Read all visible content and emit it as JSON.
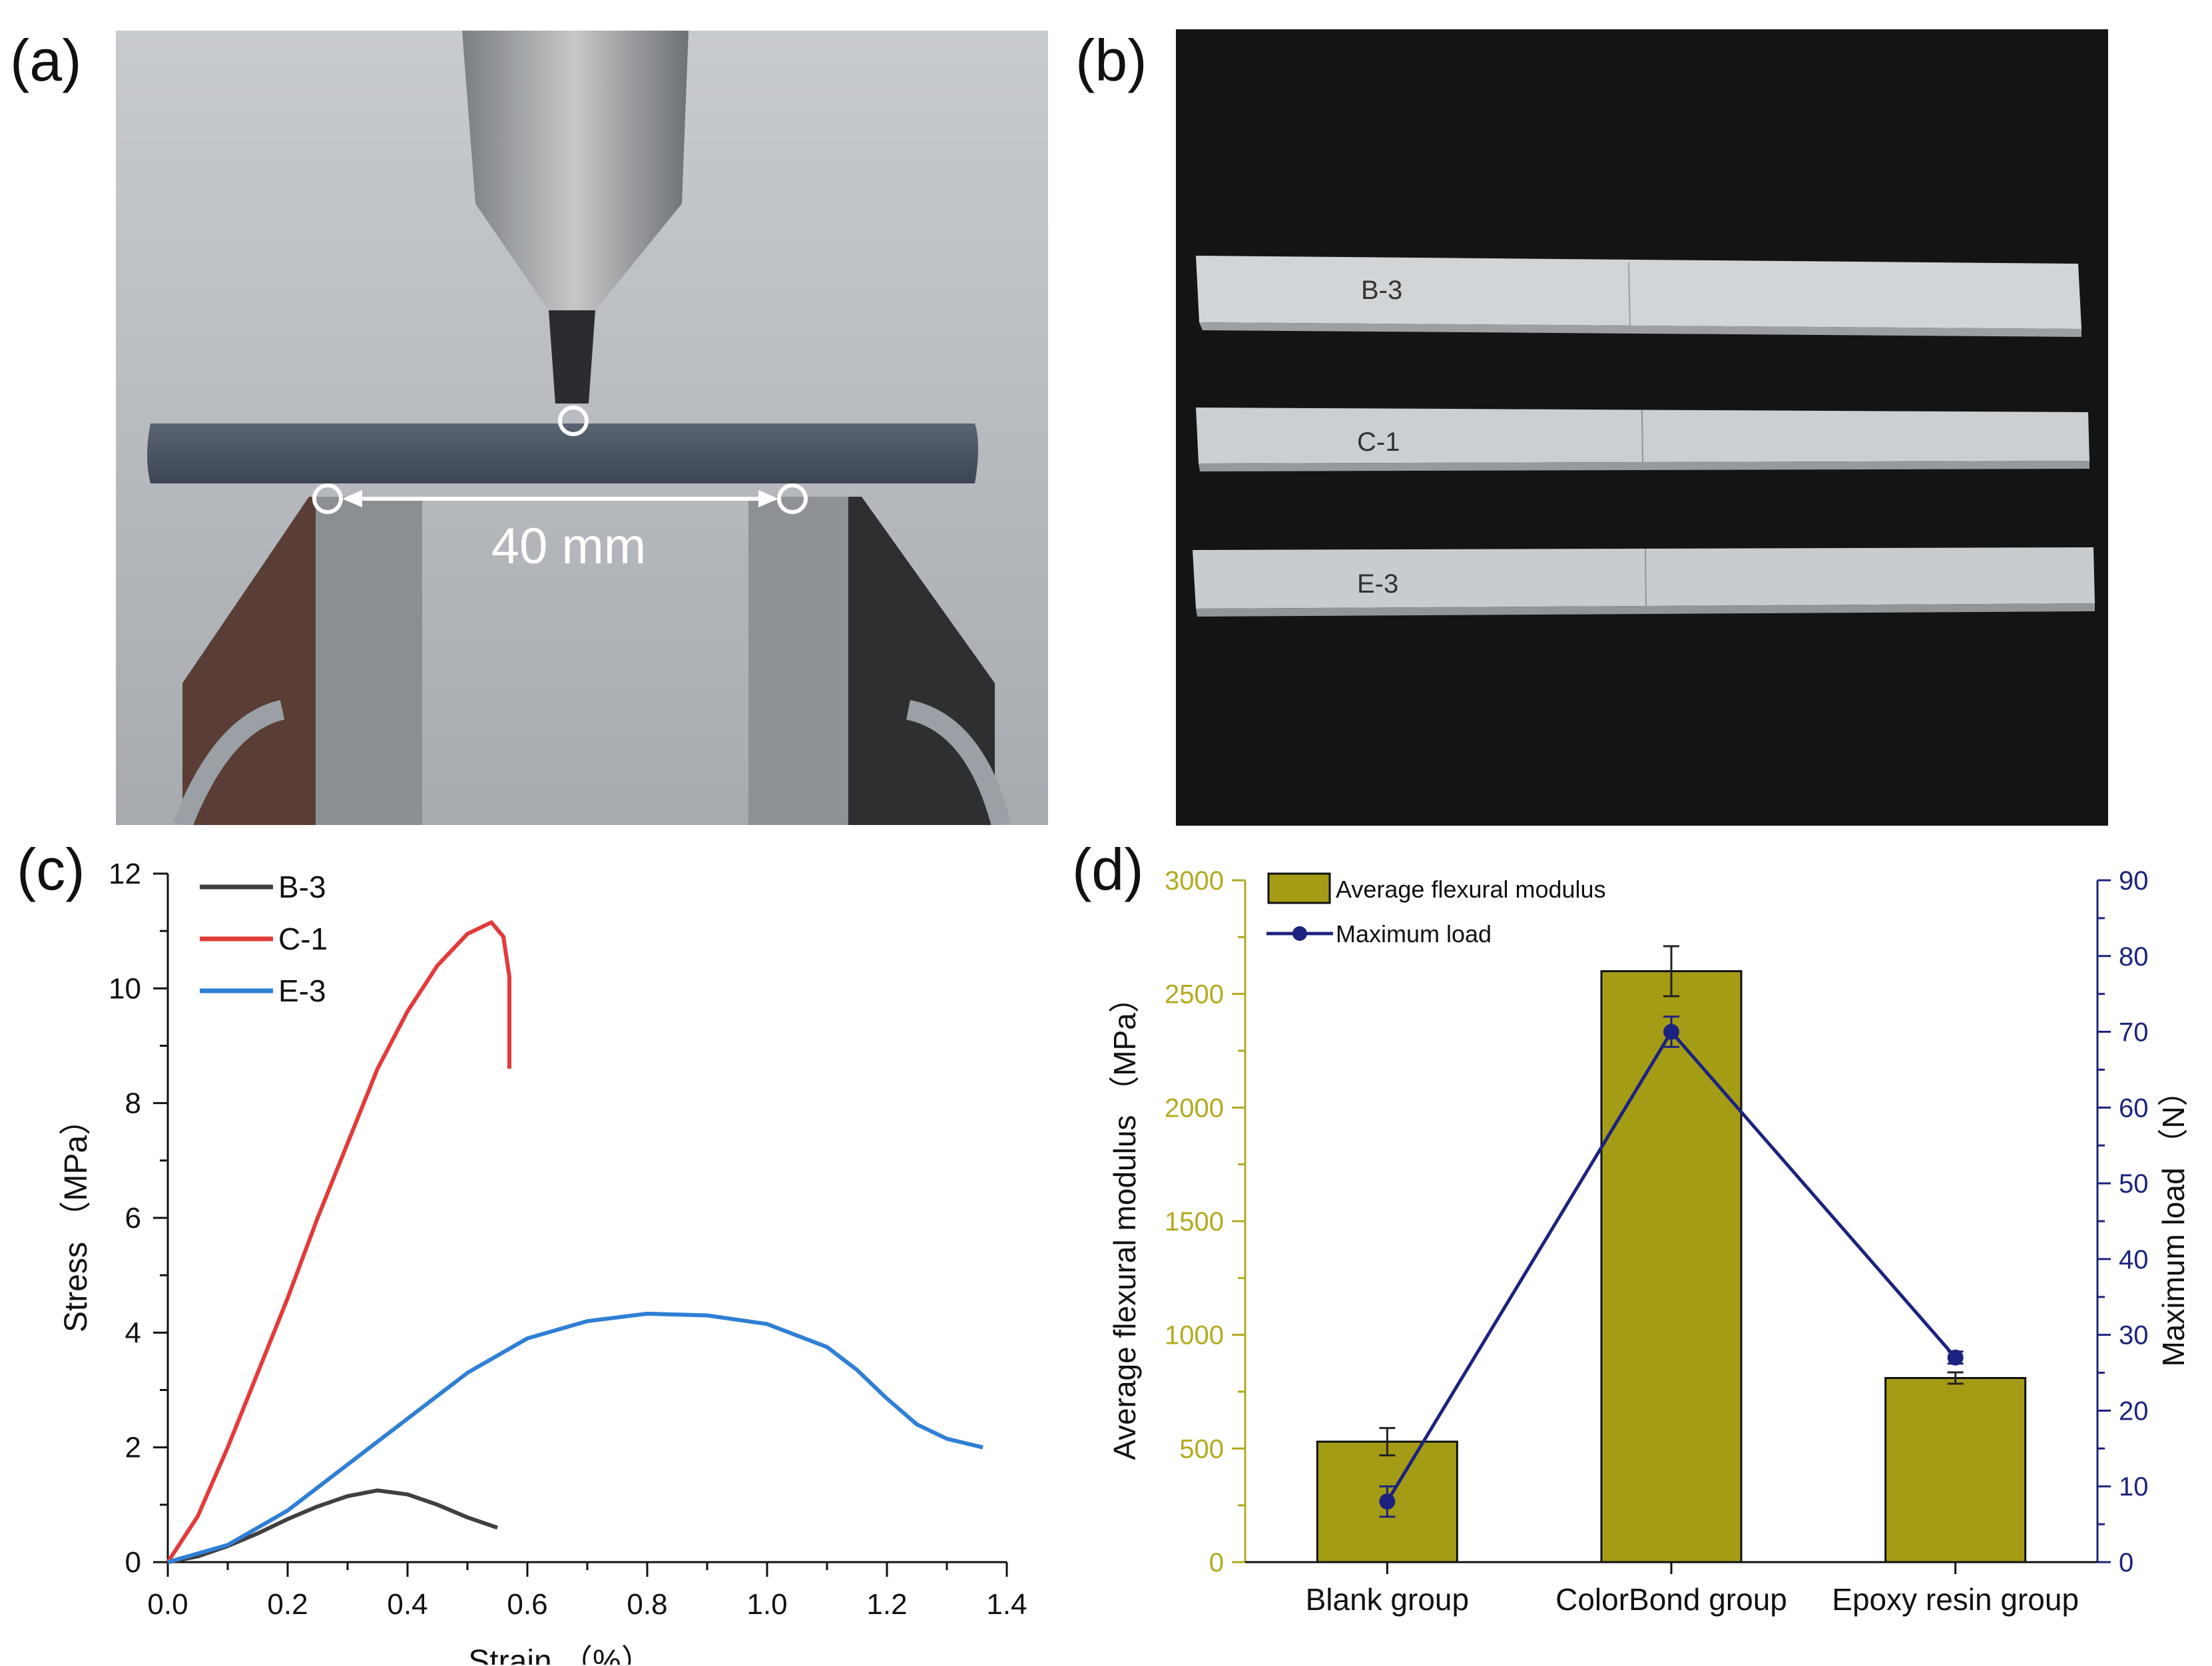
{
  "panels": {
    "a": {
      "label": "(a)",
      "span_label": "40 mm"
    },
    "b": {
      "label": "(b)",
      "specimens": [
        "B-3",
        "C-1",
        "E-3"
      ]
    },
    "c": {
      "label": "(c)"
    },
    "d": {
      "label": "(d)"
    }
  },
  "colors": {
    "b3": "#404040",
    "c1": "#e23b3b",
    "e3": "#2f7fd6",
    "bar": "#a59c16",
    "load": "#1c237e",
    "left_axis": "#b3aa1f",
    "right_axis": "#1c237e"
  },
  "chart_data": [
    {
      "type": "line",
      "xlabel": "Strain （%）",
      "ylabel": "Stress （MPa）",
      "xlim": [
        0,
        1.4
      ],
      "ylim": [
        0,
        12
      ],
      "xticks": [
        "0.0",
        "0.2",
        "0.4",
        "0.6",
        "0.8",
        "1.0",
        "1.2",
        "1.4"
      ],
      "yticks": [
        "0",
        "2",
        "4",
        "6",
        "8",
        "10",
        "12"
      ],
      "legend": "top-left",
      "series": [
        {
          "name": "B-3",
          "color": "#404040",
          "x": [
            0,
            0.05,
            0.1,
            0.15,
            0.2,
            0.25,
            0.3,
            0.35,
            0.4,
            0.45,
            0.5,
            0.55
          ],
          "y": [
            0,
            0.1,
            0.28,
            0.5,
            0.75,
            0.97,
            1.15,
            1.25,
            1.18,
            1.0,
            0.78,
            0.6
          ]
        },
        {
          "name": "C-1",
          "color": "#e23b3b",
          "x": [
            0,
            0.05,
            0.1,
            0.15,
            0.2,
            0.25,
            0.3,
            0.35,
            0.4,
            0.45,
            0.5,
            0.54,
            0.56,
            0.57,
            0.57
          ],
          "y": [
            0,
            0.8,
            2.0,
            3.3,
            4.6,
            6.0,
            7.3,
            8.6,
            9.6,
            10.4,
            10.95,
            11.15,
            10.9,
            10.2,
            8.6
          ]
        },
        {
          "name": "E-3",
          "color": "#2f7fd6",
          "x": [
            0,
            0.1,
            0.2,
            0.3,
            0.4,
            0.5,
            0.6,
            0.7,
            0.8,
            0.9,
            1.0,
            1.1,
            1.15,
            1.2,
            1.25,
            1.3,
            1.36
          ],
          "y": [
            0,
            0.3,
            0.9,
            1.7,
            2.5,
            3.3,
            3.9,
            4.2,
            4.33,
            4.3,
            4.15,
            3.75,
            3.35,
            2.85,
            2.4,
            2.15,
            2.0
          ]
        }
      ]
    },
    {
      "type": "bar",
      "categories": [
        "Blank group",
        "ColorBond group",
        "Epoxy resin group"
      ],
      "ylabel": "Average flexural modulus （MPa）",
      "y2label": "Maximum load （N）",
      "ylim": [
        0,
        3000
      ],
      "y2lim": [
        0,
        90
      ],
      "yticks": [
        "0",
        "500",
        "1000",
        "1500",
        "2000",
        "2500",
        "3000"
      ],
      "y2ticks": [
        "0",
        "10",
        "20",
        "30",
        "40",
        "50",
        "60",
        "70",
        "80",
        "90"
      ],
      "legend": "top-left",
      "series": [
        {
          "name": "Average flexural modulus",
          "type": "bar",
          "axis": "left",
          "values": [
            530,
            2600,
            810
          ],
          "errors": [
            60,
            110,
            25
          ]
        },
        {
          "name": "Maximum load",
          "type": "line",
          "axis": "right",
          "values": [
            8,
            70,
            27
          ],
          "errors": [
            2,
            2,
            0.8
          ]
        }
      ]
    }
  ]
}
